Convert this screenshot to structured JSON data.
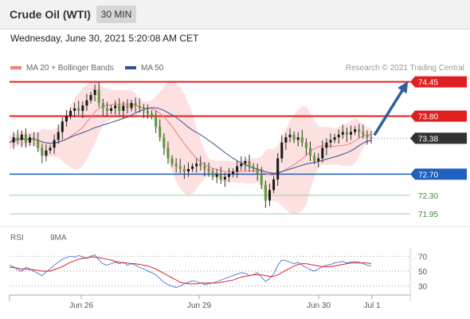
{
  "header": {
    "instrument": "Crude Oil (WTI)",
    "timeframe": "30 MIN"
  },
  "datetime": "Wednesday, June 30, 2021 5:20:08 AM CET",
  "credit": "Research © 2021 Trading Central",
  "colors": {
    "resistance": "#e02020",
    "support": "#1f5fbf",
    "target": "#55aa55",
    "ma20": "#f08080",
    "ma50": "#2f5596",
    "rsi": "#5a7fd6",
    "rsi_ma": "#e02020",
    "arrow": "#2f5f9f",
    "bollinger_fill": "#fde0e0",
    "current": "#333333"
  },
  "chart_data": [
    {
      "type": "candlestick",
      "legend": [
        {
          "name": "MA 20 + Bollinger Bands",
          "color": "#f08080"
        },
        {
          "name": "MA 50",
          "color": "#2f5596"
        }
      ],
      "x_ticks": [
        "Jun 26",
        "Jun 29",
        "Jun 30",
        "Jul 1"
      ],
      "ylim": [
        71.8,
        74.55
      ],
      "levels": [
        {
          "value": 74.45,
          "label": "74.45",
          "kind": "resistance"
        },
        {
          "value": 73.8,
          "label": "73.80",
          "kind": "resistance"
        },
        {
          "value": 73.38,
          "label": "73.38",
          "kind": "current"
        },
        {
          "value": 72.7,
          "label": "72.70",
          "kind": "support"
        },
        {
          "value": 72.3,
          "label": "72.30",
          "kind": "target"
        },
        {
          "value": 71.95,
          "label": "71.95",
          "kind": "target"
        }
      ],
      "close_path": [
        73.3,
        73.4,
        73.35,
        73.45,
        73.3,
        73.4,
        73.35,
        73.2,
        73.05,
        73.15,
        73.2,
        73.35,
        73.5,
        73.7,
        73.8,
        73.9,
        73.95,
        73.9,
        74.0,
        74.1,
        74.2,
        74.3,
        74.05,
        73.95,
        73.9,
        73.95,
        74.0,
        73.9,
        74.0,
        73.95,
        74.05,
        74.0,
        73.95,
        73.9,
        73.85,
        73.8,
        73.6,
        73.4,
        73.2,
        73.0,
        72.9,
        72.85,
        72.8,
        72.75,
        72.8,
        72.85,
        72.9,
        72.85,
        72.8,
        72.75,
        72.65,
        72.7,
        72.6,
        72.65,
        72.7,
        72.75,
        72.85,
        72.9,
        72.95,
        72.85,
        72.8,
        72.7,
        72.5,
        72.2,
        72.4,
        72.6,
        73.0,
        73.3,
        73.4,
        73.45,
        73.35,
        73.4,
        73.3,
        73.2,
        73.05,
        72.95,
        73.0,
        73.2,
        73.3,
        73.35,
        73.4,
        73.45,
        73.5,
        73.45,
        73.5,
        73.55,
        73.5,
        73.45,
        73.4,
        73.38
      ],
      "projection": {
        "from": 73.38,
        "to": 74.45
      }
    },
    {
      "type": "line",
      "title": "RSI",
      "legend": [
        {
          "name": "RSI",
          "color": "#5a7fd6"
        },
        {
          "name": "9MA",
          "color": "#e02020"
        }
      ],
      "ylim": [
        20,
        80
      ],
      "y_ticks": [
        70,
        50,
        30
      ],
      "rsi": [
        58,
        56,
        52,
        50,
        55,
        53,
        50,
        47,
        44,
        49,
        53,
        58,
        62,
        66,
        68,
        70,
        69,
        71,
        69,
        67,
        70,
        72,
        65,
        60,
        58,
        60,
        62,
        60,
        62,
        58,
        60,
        58,
        55,
        53,
        50,
        48,
        45,
        40,
        35,
        32,
        30,
        28,
        30,
        33,
        35,
        37,
        36,
        34,
        32,
        33,
        34,
        36,
        38,
        40,
        42,
        44,
        46,
        48,
        47,
        44,
        45,
        48,
        42,
        36,
        40,
        46,
        58,
        65,
        64,
        62,
        60,
        62,
        58,
        55,
        52,
        50,
        53,
        56,
        58,
        59,
        61,
        62,
        63,
        61,
        62,
        63,
        62,
        60,
        58,
        57
      ],
      "ma9": [
        55,
        55,
        54,
        53,
        53,
        52,
        52,
        51,
        50,
        50,
        50,
        52,
        54,
        56,
        59,
        62,
        64,
        66,
        67,
        68,
        69,
        69,
        68,
        67,
        66,
        65,
        63,
        62,
        61,
        61,
        60,
        60,
        59,
        58,
        57,
        55,
        53,
        50,
        47,
        44,
        41,
        38,
        35,
        34,
        33,
        33,
        33,
        34,
        34,
        34,
        34,
        34,
        35,
        36,
        37,
        38,
        40,
        42,
        43,
        44,
        45,
        45,
        45,
        44,
        43,
        43,
        45,
        48,
        51,
        54,
        57,
        59,
        60,
        60,
        59,
        58,
        57,
        56,
        56,
        56,
        57,
        58,
        59,
        60,
        61,
        61,
        61,
        61,
        61,
        60
      ]
    }
  ]
}
